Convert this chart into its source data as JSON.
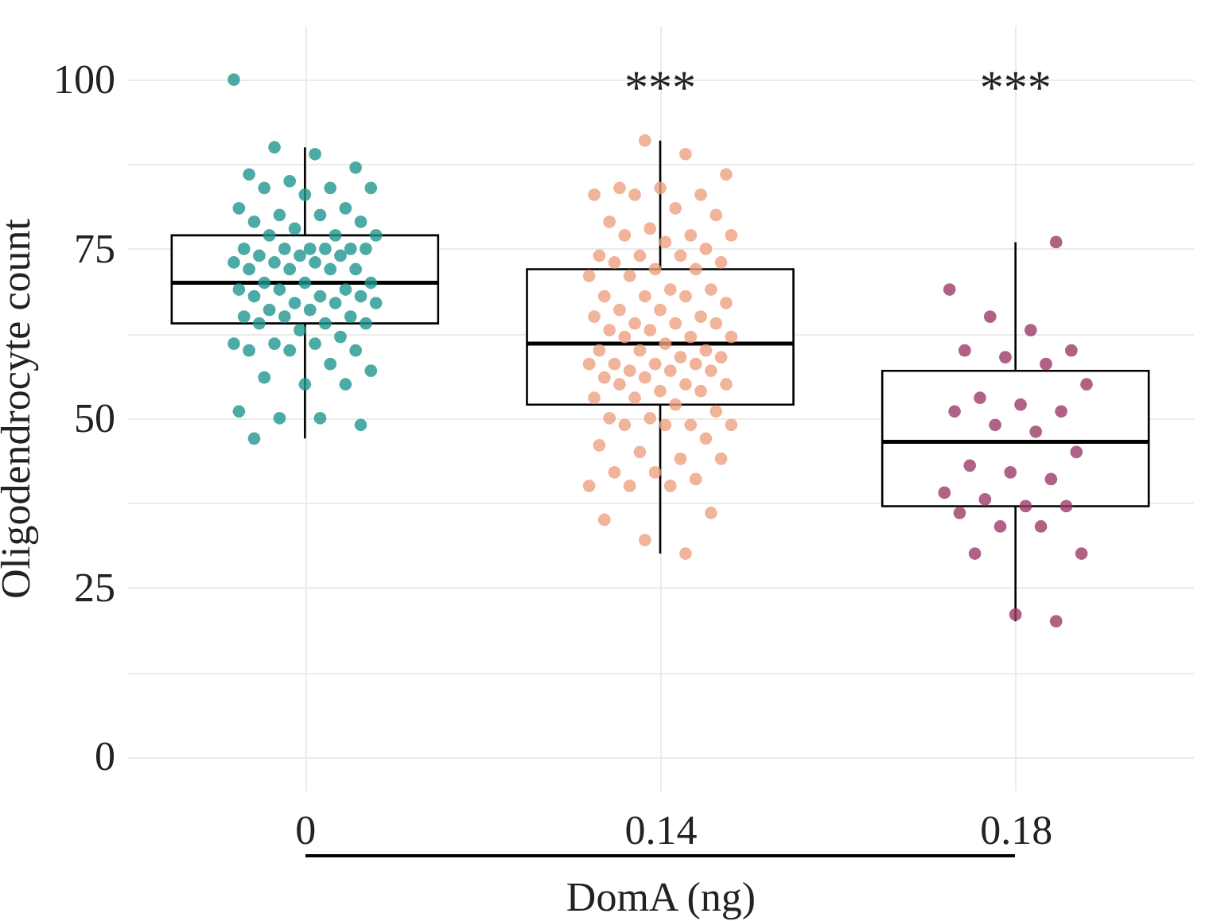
{
  "chart_data": {
    "type": "box",
    "xlabel": "DomA (ng)",
    "ylabel": "Oligodendrocyte count",
    "categories": [
      "0",
      "0.14",
      "0.18"
    ],
    "boxes": [
      {
        "low": 47,
        "q1": 64,
        "median": 70,
        "q3": 77,
        "high": 90
      },
      {
        "low": 30,
        "q1": 52,
        "median": 61,
        "q3": 72,
        "high": 91
      },
      {
        "low": 20,
        "q1": 37,
        "median": 46.5,
        "q3": 57,
        "high": 76
      }
    ],
    "series": [
      {
        "type": "scatter",
        "color": "#1f968f",
        "x": [
          "0",
          "0",
          "0",
          "0",
          "0",
          "0",
          "0",
          "0",
          "0",
          "0",
          "0",
          "0",
          "0",
          "0",
          "0",
          "0",
          "0",
          "0",
          "0",
          "0",
          "0",
          "0",
          "0",
          "0",
          "0",
          "0",
          "0",
          "0",
          "0",
          "0",
          "0",
          "0",
          "0",
          "0",
          "0",
          "0",
          "0",
          "0",
          "0",
          "0",
          "0",
          "0",
          "0",
          "0",
          "0",
          "0",
          "0",
          "0",
          "0",
          "0",
          "0",
          "0",
          "0",
          "0",
          "0",
          "0",
          "0",
          "0",
          "0",
          "0",
          "0",
          "0",
          "0",
          "0",
          "0",
          "0",
          "0",
          "0",
          "0",
          "0",
          "0",
          "0",
          "0",
          "0"
        ],
        "values": [
          100,
          90,
          89,
          87,
          86,
          85,
          84,
          84,
          84,
          83,
          81,
          81,
          80,
          80,
          79,
          79,
          78,
          77,
          77,
          77,
          75,
          75,
          75,
          75,
          75,
          75,
          74,
          74,
          74,
          73,
          73,
          73,
          72,
          72,
          72,
          72,
          70,
          70,
          70,
          69,
          69,
          69,
          68,
          68,
          68,
          67,
          67,
          67,
          66,
          66,
          65,
          65,
          65,
          64,
          64,
          64,
          63,
          62,
          61,
          61,
          61,
          60,
          60,
          60,
          58,
          57,
          56,
          55,
          55,
          51,
          50,
          50,
          49,
          47
        ]
      },
      {
        "type": "scatter",
        "color": "#eea07f",
        "x": [
          "0.14",
          "0.14",
          "0.14",
          "0.14",
          "0.14",
          "0.14",
          "0.14",
          "0.14",
          "0.14",
          "0.14",
          "0.14",
          "0.14",
          "0.14",
          "0.14",
          "0.14",
          "0.14",
          "0.14",
          "0.14",
          "0.14",
          "0.14",
          "0.14",
          "0.14",
          "0.14",
          "0.14",
          "0.14",
          "0.14",
          "0.14",
          "0.14",
          "0.14",
          "0.14",
          "0.14",
          "0.14",
          "0.14",
          "0.14",
          "0.14",
          "0.14",
          "0.14",
          "0.14",
          "0.14",
          "0.14",
          "0.14",
          "0.14",
          "0.14",
          "0.14",
          "0.14",
          "0.14",
          "0.14",
          "0.14",
          "0.14",
          "0.14",
          "0.14",
          "0.14",
          "0.14",
          "0.14",
          "0.14",
          "0.14",
          "0.14",
          "0.14",
          "0.14",
          "0.14",
          "0.14",
          "0.14",
          "0.14",
          "0.14",
          "0.14",
          "0.14",
          "0.14",
          "0.14",
          "0.14",
          "0.14",
          "0.14",
          "0.14",
          "0.14",
          "0.14",
          "0.14",
          "0.14",
          "0.14",
          "0.14",
          "0.14",
          "0.14",
          "0.14",
          "0.14",
          "0.14",
          "0.14",
          "0.14",
          "0.14",
          "0.14",
          "0.14",
          "0.14"
        ],
        "values": [
          91,
          89,
          86,
          84,
          84,
          83,
          83,
          83,
          81,
          80,
          79,
          78,
          77,
          77,
          77,
          76,
          75,
          74,
          74,
          74,
          73,
          73,
          72,
          72,
          71,
          71,
          69,
          69,
          68,
          68,
          68,
          67,
          66,
          66,
          65,
          65,
          64,
          64,
          64,
          63,
          63,
          62,
          62,
          62,
          61,
          60,
          60,
          60,
          59,
          59,
          58,
          58,
          58,
          58,
          57,
          57,
          57,
          56,
          56,
          55,
          55,
          55,
          54,
          54,
          53,
          53,
          52,
          51,
          50,
          50,
          49,
          49,
          49,
          49,
          47,
          46,
          45,
          44,
          44,
          42,
          42,
          41,
          40,
          40,
          40,
          36,
          35,
          32,
          30
        ]
      },
      {
        "type": "scatter",
        "color": "#9c3a68",
        "x": [
          "0.18",
          "0.18",
          "0.18",
          "0.18",
          "0.18",
          "0.18",
          "0.18",
          "0.18",
          "0.18",
          "0.18",
          "0.18",
          "0.18",
          "0.18",
          "0.18",
          "0.18",
          "0.18",
          "0.18",
          "0.18",
          "0.18",
          "0.18",
          "0.18",
          "0.18",
          "0.18",
          "0.18",
          "0.18",
          "0.18",
          "0.18",
          "0.18",
          "0.18",
          "0.18"
        ],
        "values": [
          76,
          69,
          65,
          63,
          60,
          60,
          59,
          58,
          55,
          53,
          52,
          51,
          51,
          49,
          48,
          45,
          43,
          42,
          41,
          39,
          38,
          37,
          37,
          36,
          34,
          34,
          30,
          30,
          21,
          20
        ]
      }
    ],
    "annotations": [
      "***",
      "***"
    ],
    "ylim": [
      -5,
      108
    ],
    "yticks": [
      0,
      {
        "value": 12.5,
        "label": null
      },
      25,
      {
        "value": 37.5,
        "label": null
      },
      50,
      {
        "value": 62.5,
        "label": null
      },
      75,
      {
        "value": 87.5,
        "label": null
      },
      100
    ],
    "grid": true,
    "marker": "circle"
  }
}
